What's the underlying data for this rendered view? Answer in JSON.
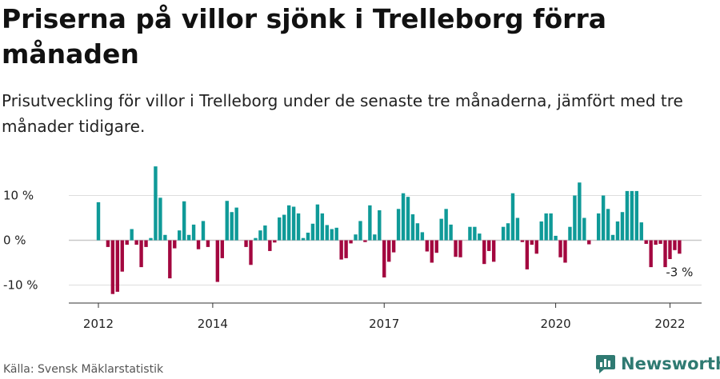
{
  "title": "Priserna på villor sjönk i Trelleborg förra månaden",
  "subtitle": "Prisutveckling för villor i Trelleborg under de senaste tre månaderna, jämfört med tre månader tidigare.",
  "source": "Källa: Svensk Mäklarstatistik",
  "brand": {
    "name": "Newsworthy",
    "icon": "newsworthy-logo-icon",
    "color": "#2f7a72"
  },
  "colors": {
    "positive": "#0f9a98",
    "negative": "#a3073f",
    "grid": "#dddddd",
    "axis": "#333333",
    "text": "#222222"
  },
  "chart_data": {
    "type": "bar",
    "title": "",
    "xlabel": "",
    "ylabel": "",
    "ylim": [
      -14,
      18
    ],
    "y_ticks": [
      -10,
      0,
      10
    ],
    "y_tick_labels": [
      "-10 %",
      "0 %",
      "10 %"
    ],
    "x_ticks": [
      "2012",
      "2014",
      "2017",
      "2020",
      "2022"
    ],
    "last_value_label": "-3 %",
    "grid": true,
    "start": "2012-01",
    "frequency": "monthly",
    "values": [
      8.5,
      0,
      -1.5,
      -12,
      -11.5,
      -7,
      -1,
      2.5,
      -1,
      -6,
      -1.5,
      0.5,
      16.5,
      9.5,
      1.2,
      -8.5,
      -1.8,
      2.2,
      8.7,
      1.2,
      3.5,
      -2,
      4.3,
      -1.5,
      0,
      -9.3,
      -4,
      8.8,
      6.3,
      7.3,
      0,
      -1.5,
      -5.5,
      0.5,
      2.2,
      3.3,
      -2.4,
      -0.5,
      5.1,
      5.7,
      7.8,
      7.5,
      6,
      0.5,
      1.7,
      3.7,
      8,
      6,
      3.4,
      2.5,
      2.8,
      -4.3,
      -4,
      -0.7,
      1.3,
      4.3,
      -0.4,
      7.8,
      1.3,
      6.7,
      -8.3,
      -4.8,
      -2.7,
      7,
      10.5,
      9.7,
      5.8,
      3.8,
      1.8,
      -2.5,
      -5,
      -2.8,
      4.8,
      7,
      3.5,
      -3.7,
      -3.8,
      0,
      3,
      3,
      1.5,
      -5.3,
      -2.4,
      -4.8,
      0,
      3,
      3.8,
      10.5,
      5,
      -0.4,
      -6.5,
      -1,
      -3,
      4.2,
      6,
      6,
      1,
      -3.8,
      -5,
      3,
      10,
      12.9,
      5,
      -0.9,
      0,
      6,
      10,
      7,
      1.2,
      4.2,
      6.3,
      11,
      11,
      11,
      4,
      -0.8,
      -6,
      -1,
      -0.8,
      -6,
      -4.2,
      -2.2,
      -3
    ]
  }
}
